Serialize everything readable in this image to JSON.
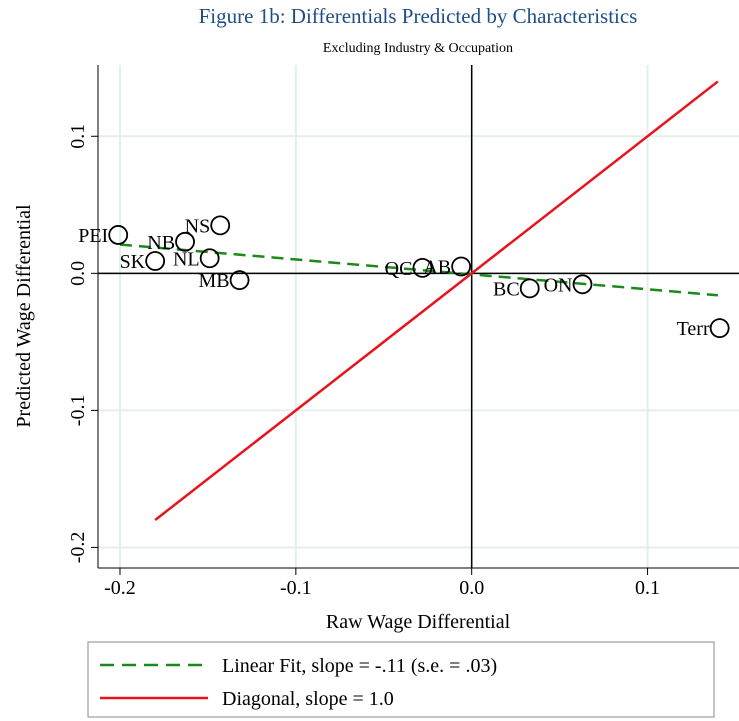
{
  "chart_data": {
    "type": "scatter",
    "title": "Figure 1b: Differentials Predicted by Characteristics",
    "subtitle": "Excluding Industry & Occupation",
    "x_label": "Raw Wage Differential",
    "y_label": "Predicted Wage Differential",
    "xlim": [
      -0.2125,
      0.152
    ],
    "ylim": [
      -0.215,
      0.152
    ],
    "xticks": [
      -0.2,
      -0.1,
      {
        "value": 0,
        "label": "0.0"
      },
      0.1
    ],
    "yticks": [
      -0.2,
      -0.1,
      {
        "value": 0,
        "label": "0.0"
      },
      0.1
    ],
    "grid": true,
    "grid_color": "#e3efe9",
    "marker_color": "#000000",
    "points": {
      "labels": [
        "PEI",
        "NS",
        "NB",
        "SK",
        "NL",
        "MB",
        "QC",
        "AB",
        "BC",
        "ON",
        "Terr"
      ],
      "x": [
        -0.201,
        -0.143,
        -0.163,
        -0.18,
        -0.149,
        -0.132,
        -0.028,
        -0.006,
        0.033,
        0.063,
        0.141
      ],
      "y": [
        0.028,
        0.035,
        0.023,
        0.009,
        0.011,
        -0.005,
        0.004,
        0.005,
        -0.011,
        -0.008,
        -0.04
      ]
    },
    "series": [
      {
        "name": "Linear Fit, slope = -.11 (s.e. = .03)",
        "color": "#1a8a1a",
        "dashed": true,
        "x": [
          -0.2,
          0.14
        ],
        "y": [
          0.021,
          -0.016
        ]
      },
      {
        "name": "Diagonal, slope = 1.0",
        "color": "#e8141c",
        "dashed": false,
        "x": [
          -0.18,
          0.14
        ],
        "y": [
          -0.18,
          0.14
        ]
      }
    ]
  }
}
